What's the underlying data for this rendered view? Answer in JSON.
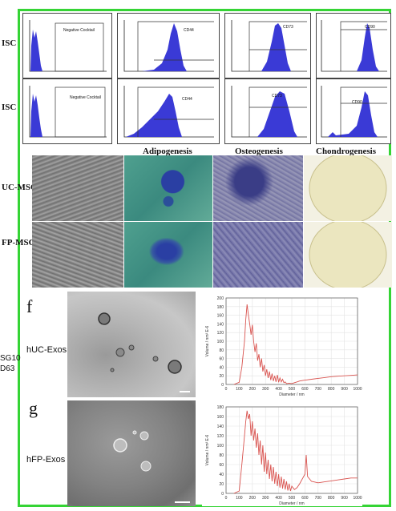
{
  "row_labels": {
    "row1": "ISC",
    "row2": "ISC",
    "row3": "UC-MSC",
    "row4": "FP-MSC"
  },
  "flow_panels": {
    "row1": [
      "Negative Cocktail",
      "CD44",
      "CD73",
      "CD90"
    ],
    "row2": [
      "Negative Cocktail",
      "CD44",
      "CD73",
      "CD90"
    ]
  },
  "differentiation_headers": [
    "Adipogenesis",
    "Osteogenesis",
    "Chondrogenesis"
  ],
  "panel_letters": {
    "f": "f",
    "g": "g"
  },
  "exos_labels": {
    "huc": "hUC-Exos",
    "hfp": "hFP-Exos"
  },
  "left_fragment": {
    "line1": "SG10",
    "line2": "D63"
  },
  "colors": {
    "frame": "#35d435",
    "histogram": "#3a3ad6",
    "size_curve": "#d9534f"
  },
  "chart_data": [
    {
      "type": "line",
      "xlabel": "Diameter / nm",
      "ylabel": "Volume / nm³ E-6",
      "xlim": [
        0,
        1000
      ],
      "ylim": [
        0,
        200
      ],
      "xticks": [
        "0",
        "100",
        "200",
        "300",
        "400",
        "500",
        "600",
        "700",
        "800",
        "900",
        "1000"
      ],
      "yticks": [
        "0",
        "20",
        "40",
        "60",
        "80",
        "100",
        "120",
        "140",
        "160",
        "180",
        "200"
      ],
      "x": [
        60,
        100,
        120,
        140,
        150,
        160,
        170,
        180,
        190,
        200,
        210,
        220,
        230,
        240,
        250,
        260,
        270,
        280,
        290,
        300,
        310,
        320,
        330,
        340,
        350,
        360,
        370,
        380,
        390,
        400,
        410,
        420,
        430,
        440,
        450,
        460,
        480,
        500,
        520,
        540,
        560,
        600,
        650,
        700,
        750,
        800,
        850,
        900,
        950,
        1000
      ],
      "y": [
        0,
        5,
        40,
        100,
        150,
        185,
        160,
        140,
        115,
        138,
        100,
        75,
        95,
        55,
        70,
        40,
        60,
        30,
        45,
        20,
        35,
        15,
        30,
        10,
        25,
        8,
        20,
        6,
        22,
        5,
        15,
        6,
        12,
        4,
        6,
        2,
        3,
        2,
        4,
        6,
        8,
        10,
        12,
        14,
        16,
        18,
        19,
        20,
        21,
        22
      ]
    },
    {
      "type": "line",
      "xlabel": "Diameter / nm",
      "ylabel": "Volume / nm³ E-6",
      "xlim": [
        0,
        1000
      ],
      "ylim": [
        0,
        180
      ],
      "xticks": [
        "0",
        "100",
        "200",
        "300",
        "400",
        "500",
        "600",
        "700",
        "800",
        "900",
        "1000"
      ],
      "yticks": [
        "0",
        "20",
        "40",
        "60",
        "80",
        "100",
        "120",
        "140",
        "160",
        "180"
      ],
      "x": [
        60,
        100,
        120,
        140,
        150,
        160,
        170,
        180,
        190,
        200,
        210,
        220,
        230,
        240,
        250,
        260,
        270,
        280,
        290,
        300,
        310,
        320,
        330,
        340,
        350,
        360,
        370,
        380,
        390,
        400,
        410,
        420,
        430,
        440,
        450,
        460,
        470,
        480,
        490,
        500,
        520,
        540,
        560,
        580,
        600,
        610,
        620,
        650,
        700,
        750,
        800,
        850,
        900,
        950,
        1000
      ],
      "y": [
        0,
        5,
        60,
        120,
        150,
        172,
        155,
        165,
        120,
        150,
        110,
        135,
        95,
        125,
        80,
        110,
        60,
        100,
        45,
        85,
        40,
        70,
        30,
        60,
        25,
        55,
        20,
        45,
        15,
        40,
        12,
        35,
        10,
        30,
        8,
        25,
        6,
        20,
        5,
        15,
        8,
        12,
        20,
        30,
        40,
        80,
        35,
        25,
        22,
        24,
        26,
        28,
        30,
        32,
        32
      ]
    }
  ]
}
